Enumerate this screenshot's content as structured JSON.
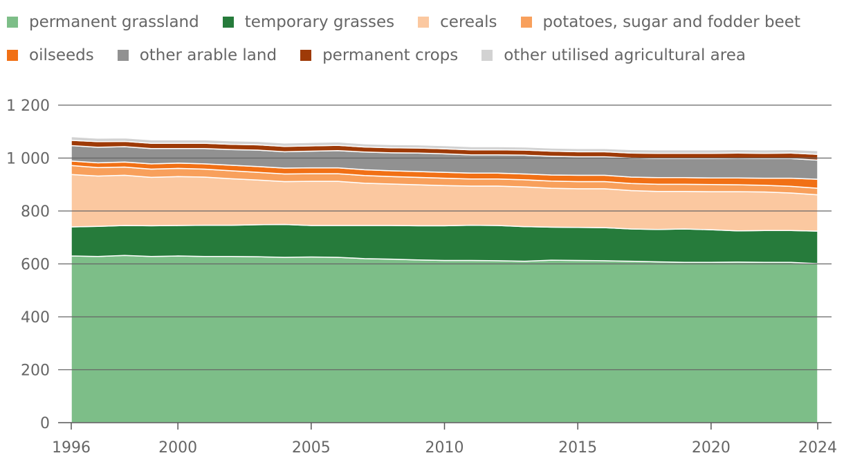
{
  "chart_data": {
    "type": "area",
    "stacked": true,
    "title": "",
    "xlabel": "",
    "ylabel": "",
    "x": [
      1996,
      1997,
      1998,
      1999,
      2000,
      2001,
      2002,
      2003,
      2004,
      2005,
      2006,
      2007,
      2008,
      2009,
      2010,
      2011,
      2012,
      2013,
      2014,
      2015,
      2016,
      2017,
      2018,
      2019,
      2020,
      2021,
      2022,
      2023,
      2024
    ],
    "xticks": [
      1996,
      2000,
      2005,
      2010,
      2015,
      2020,
      2024
    ],
    "yticks": [
      0,
      200,
      400,
      600,
      800,
      1000,
      1200
    ],
    "ytick_labels": [
      "0",
      "200",
      "400",
      "600",
      "800",
      "1 000",
      "1 200"
    ],
    "ylim": [
      0,
      1200
    ],
    "grid": true,
    "legend_position": "top",
    "series": [
      {
        "name": "permanent grassland",
        "color": "#7dbe88",
        "values": [
          630,
          628,
          632,
          628,
          630,
          628,
          628,
          627,
          625,
          626,
          625,
          620,
          618,
          615,
          613,
          613,
          612,
          610,
          614,
          613,
          612,
          610,
          608,
          606,
          606,
          607,
          606,
          606,
          601
        ]
      },
      {
        "name": "temporary grasses",
        "color": "#267b3b",
        "values": [
          110,
          114,
          113,
          116,
          115,
          118,
          118,
          121,
          124,
          119,
          120,
          125,
          127,
          129,
          131,
          133,
          133,
          131,
          125,
          125,
          125,
          122,
          122,
          126,
          123,
          118,
          120,
          120,
          123
        ]
      },
      {
        "name": "cereals",
        "color": "#fbc8a0",
        "values": [
          198,
          190,
          190,
          183,
          185,
          182,
          176,
          169,
          162,
          167,
          167,
          160,
          157,
          155,
          152,
          148,
          149,
          150,
          147,
          146,
          147,
          145,
          144,
          142,
          144,
          148,
          146,
          142,
          137
        ]
      },
      {
        "name": "potatoes, sugar and fodder beet",
        "color": "#f8a05c",
        "values": [
          34,
          32,
          31,
          31,
          31,
          30,
          30,
          29,
          29,
          29,
          29,
          29,
          28,
          28,
          28,
          27,
          27,
          27,
          27,
          27,
          27,
          27,
          27,
          27,
          27,
          26,
          25,
          25,
          25
        ]
      },
      {
        "name": "oilseeds",
        "color": "#f17015",
        "values": [
          17,
          18,
          19,
          20,
          20,
          20,
          21,
          22,
          22,
          22,
          22,
          22,
          22,
          22,
          22,
          22,
          22,
          22,
          23,
          24,
          24,
          24,
          25,
          25,
          25,
          26,
          27,
          31,
          34
        ]
      },
      {
        "name": "other arable land",
        "color": "#919191",
        "values": [
          58,
          59,
          58,
          58,
          55,
          58,
          59,
          62,
          62,
          63,
          65,
          67,
          68,
          70,
          70,
          69,
          69,
          71,
          71,
          70,
          70,
          72,
          72,
          72,
          73,
          74,
          74,
          74,
          72
        ]
      },
      {
        "name": "permanent crops",
        "color": "#9e3a07",
        "values": [
          20,
          21,
          20,
          20,
          20,
          20,
          20,
          20,
          20,
          20,
          20,
          19,
          19,
          19,
          19,
          19,
          19,
          19,
          19,
          19,
          19,
          19,
          20,
          20,
          20,
          20,
          20,
          21,
          22
        ]
      },
      {
        "name": "other utilised agricultural area",
        "color": "#d2d2d2",
        "values": [
          14,
          13,
          13,
          13,
          13,
          13,
          13,
          13,
          13,
          13,
          13,
          12,
          12,
          12,
          12,
          12,
          12,
          12,
          12,
          12,
          12,
          13,
          13,
          13,
          13,
          13,
          13,
          13,
          14
        ]
      }
    ]
  }
}
